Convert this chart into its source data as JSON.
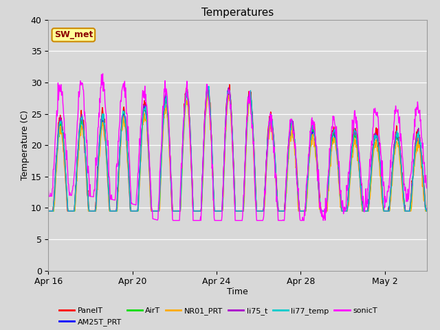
{
  "title": "Temperatures",
  "xlabel": "Time",
  "ylabel": "Temperature (C)",
  "annotation": "SW_met",
  "ylim": [
    0,
    40
  ],
  "yticks": [
    0,
    5,
    10,
    15,
    20,
    25,
    30,
    35,
    40
  ],
  "series_order": [
    "PanelT",
    "AM25T_PRT",
    "AirT",
    "NR01_PRT",
    "li75_t",
    "li77_temp",
    "sonicT"
  ],
  "series": {
    "PanelT": {
      "color": "#ff0000",
      "lw": 1.0
    },
    "AM25T_PRT": {
      "color": "#0000ff",
      "lw": 1.0
    },
    "AirT": {
      "color": "#00dd00",
      "lw": 1.0
    },
    "NR01_PRT": {
      "color": "#ffaa00",
      "lw": 1.0
    },
    "li75_t": {
      "color": "#aa00cc",
      "lw": 1.0
    },
    "li77_temp": {
      "color": "#00cccc",
      "lw": 1.0
    },
    "sonicT": {
      "color": "#ff00ff",
      "lw": 1.0
    }
  },
  "background_color": "#d8d8d8",
  "plot_bg_color": "#d8d8d8",
  "xtick_labels": [
    "Apr 16",
    "Apr 20",
    "Apr 24",
    "Apr 28",
    "May 2"
  ],
  "xtick_positions": [
    0,
    4,
    8,
    12,
    16
  ],
  "n_days": 18,
  "pts_per_day": 48
}
